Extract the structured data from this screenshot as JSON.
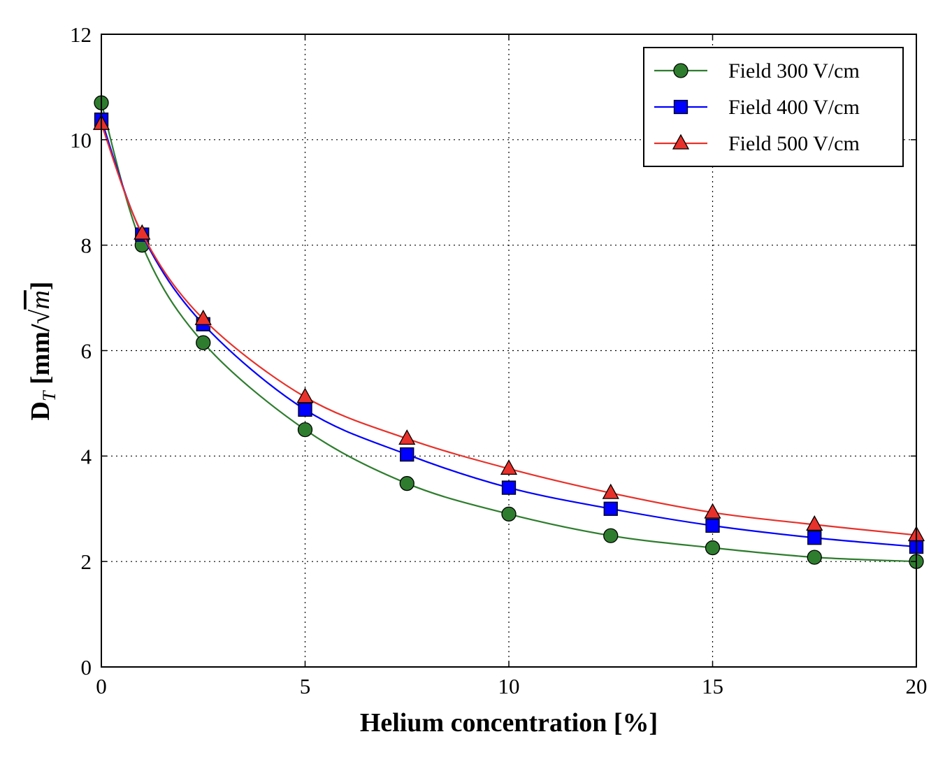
{
  "chart_data": {
    "type": "line",
    "title": "",
    "xlabel": "Helium concentration [%]",
    "ylabel_main": "D",
    "ylabel_sub": "T",
    "ylabel_unit_prefix": " [mm/",
    "ylabel_unit_root": "√",
    "ylabel_unit_var": "m",
    "ylabel_unit_suffix": "]",
    "xlim": [
      0,
      20
    ],
    "ylim": [
      0,
      12
    ],
    "xticks": [
      0,
      5,
      10,
      15,
      20
    ],
    "yticks": [
      0,
      2,
      4,
      6,
      8,
      10,
      12
    ],
    "grid": true,
    "legend_position": "top-right",
    "x": [
      0,
      1,
      2.5,
      5,
      7.5,
      10,
      12.5,
      15,
      17.5,
      20
    ],
    "series": [
      {
        "name": "Field 300 V/cm",
        "color": "#2e7d2e",
        "marker": "circle",
        "values": [
          10.7,
          8.0,
          6.15,
          4.5,
          3.48,
          2.9,
          2.49,
          2.26,
          2.08,
          2.0
        ]
      },
      {
        "name": "Field 400 V/cm",
        "color": "#0000ff",
        "marker": "square",
        "values": [
          10.38,
          8.2,
          6.5,
          4.88,
          4.03,
          3.4,
          3.0,
          2.68,
          2.45,
          2.28
        ]
      },
      {
        "name": "Field 500 V/cm",
        "color": "#e8312a",
        "marker": "triangle",
        "values": [
          10.3,
          8.22,
          6.6,
          5.12,
          4.33,
          3.76,
          3.3,
          2.93,
          2.7,
          2.5
        ]
      }
    ]
  }
}
